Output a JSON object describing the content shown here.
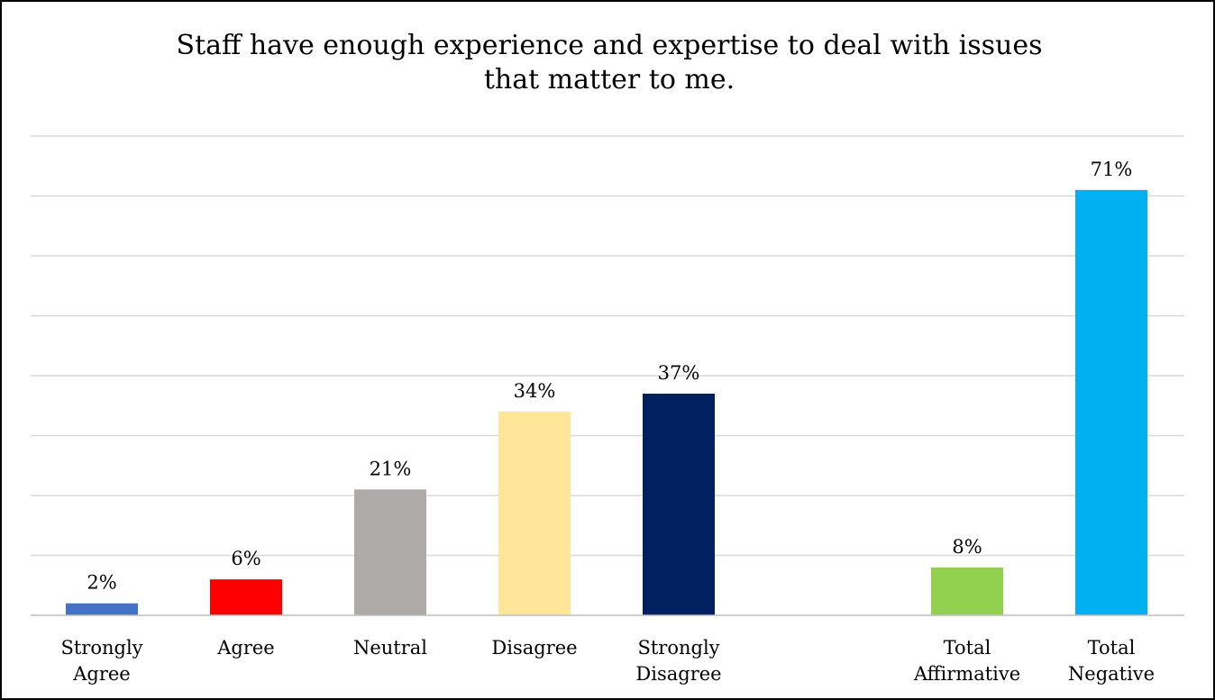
{
  "chart_data": {
    "type": "bar",
    "title_lines": [
      "Staff have enough experience and expertise to deal with issues",
      "that matter to me."
    ],
    "categories": [
      [
        "Strongly",
        "Agree"
      ],
      [
        "Agree"
      ],
      [
        "Neutral"
      ],
      [
        "Disagree"
      ],
      [
        "Strongly",
        "Disagree"
      ],
      [
        "Total",
        "Affirmative"
      ],
      [
        "Total",
        "Negative"
      ]
    ],
    "values": [
      2,
      6,
      21,
      34,
      37,
      8,
      71
    ],
    "value_labels": [
      "2%",
      "6%",
      "21%",
      "34%",
      "37%",
      "8%",
      "71%"
    ],
    "colors": [
      "#4472C4",
      "#FF0000",
      "#AEAAAA",
      "#FFE699",
      "#002060",
      "#92D050",
      "#00B0F0"
    ],
    "ylim": [
      0,
      80
    ],
    "grid": true,
    "gridline_step": 10,
    "legend": "none"
  }
}
